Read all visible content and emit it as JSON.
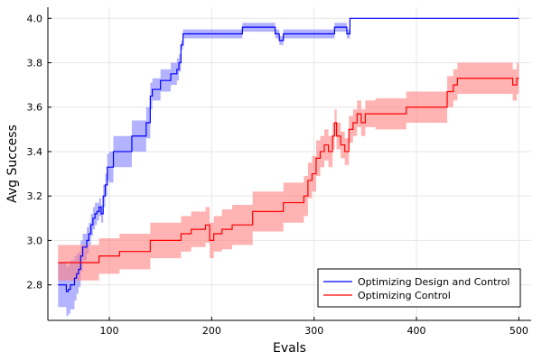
{
  "chart_data": {
    "type": "line",
    "title": "",
    "xlabel": "Evals",
    "ylabel": "Avg Success",
    "xlim": [
      40,
      512
    ],
    "ylim": [
      2.64,
      4.05
    ],
    "x_ticks": [
      100,
      200,
      300,
      400,
      500
    ],
    "y_ticks": [
      2.8,
      3.0,
      3.2,
      3.4,
      3.6,
      3.8,
      4.0
    ],
    "x_tick_labels": [
      "100",
      "200",
      "300",
      "400",
      "500"
    ],
    "y_tick_labels": [
      "2.8",
      "3.0",
      "3.2",
      "3.4",
      "3.6",
      "3.8",
      "4.0"
    ],
    "grid": true,
    "legend_position": "bottom-right",
    "series": [
      {
        "name": "Optimizing Design and Control",
        "color": "#0000ff",
        "band_color": "#8080ff",
        "x": [
          50,
          52,
          58,
          60,
          62,
          66,
          68,
          70,
          72,
          74,
          78,
          80,
          82,
          84,
          86,
          88,
          90,
          92,
          94,
          96,
          98,
          100,
          104,
          110,
          118,
          122,
          126,
          134,
          136,
          140,
          142,
          150,
          158,
          160,
          162,
          166,
          168,
          170,
          172,
          174,
          200,
          210,
          220,
          230,
          250,
          262,
          266,
          270,
          275,
          300,
          320,
          322,
          325,
          330,
          332,
          335,
          400,
          500
        ],
        "y": [
          2.8,
          2.8,
          2.77,
          2.78,
          2.8,
          2.83,
          2.85,
          2.87,
          2.93,
          2.97,
          3.0,
          3.03,
          3.07,
          3.1,
          3.12,
          3.13,
          3.15,
          3.12,
          3.2,
          3.25,
          3.33,
          3.33,
          3.4,
          3.4,
          3.4,
          3.47,
          3.47,
          3.47,
          3.53,
          3.65,
          3.68,
          3.72,
          3.72,
          3.75,
          3.75,
          3.77,
          3.8,
          3.88,
          3.93,
          3.93,
          3.93,
          3.93,
          3.93,
          3.96,
          3.96,
          3.93,
          3.9,
          3.93,
          3.93,
          3.93,
          3.96,
          3.96,
          3.96,
          3.96,
          3.93,
          4.0,
          4.0,
          4.0
        ],
        "band_half_width": [
          0.1,
          0.1,
          0.11,
          0.11,
          0.11,
          0.1,
          0.09,
          0.08,
          0.07,
          0.06,
          0.06,
          0.05,
          0.05,
          0.05,
          0.05,
          0.04,
          0.04,
          0.04,
          0.05,
          0.05,
          0.06,
          0.07,
          0.07,
          0.07,
          0.07,
          0.07,
          0.07,
          0.07,
          0.07,
          0.06,
          0.05,
          0.05,
          0.05,
          0.05,
          0.05,
          0.05,
          0.04,
          0.02,
          0.02,
          0.02,
          0.02,
          0.02,
          0.02,
          0.02,
          0.02,
          0.02,
          0.02,
          0.02,
          0.02,
          0.02,
          0.02,
          0.02,
          0.02,
          0.02,
          0.02,
          0.0,
          0.0,
          0.0
        ]
      },
      {
        "name": "Optimizing Control",
        "color": "#ff0000",
        "band_color": "#ff8080",
        "x": [
          50,
          60,
          70,
          80,
          90,
          100,
          110,
          120,
          130,
          140,
          150,
          160,
          170,
          180,
          190,
          194,
          198,
          202,
          210,
          220,
          230,
          240,
          250,
          260,
          270,
          280,
          290,
          294,
          298,
          302,
          306,
          310,
          314,
          318,
          320,
          322,
          326,
          330,
          334,
          338,
          342,
          346,
          350,
          360,
          370,
          380,
          390,
          400,
          410,
          420,
          430,
          436,
          440,
          450,
          470,
          490,
          494,
          498,
          500
        ],
        "y": [
          2.9,
          2.9,
          2.9,
          2.9,
          2.93,
          2.93,
          2.95,
          2.95,
          2.95,
          3.0,
          3.0,
          3.0,
          3.03,
          3.05,
          3.05,
          3.07,
          3.0,
          3.03,
          3.05,
          3.07,
          3.07,
          3.13,
          3.13,
          3.13,
          3.17,
          3.17,
          3.2,
          3.27,
          3.3,
          3.37,
          3.4,
          3.43,
          3.4,
          3.47,
          3.53,
          3.47,
          3.43,
          3.4,
          3.5,
          3.53,
          3.57,
          3.53,
          3.57,
          3.57,
          3.57,
          3.57,
          3.6,
          3.6,
          3.6,
          3.6,
          3.67,
          3.7,
          3.73,
          3.73,
          3.73,
          3.73,
          3.7,
          3.73,
          3.73
        ],
        "band_half_width": [
          0.08,
          0.08,
          0.08,
          0.08,
          0.08,
          0.08,
          0.08,
          0.08,
          0.08,
          0.08,
          0.08,
          0.08,
          0.08,
          0.08,
          0.08,
          0.08,
          0.08,
          0.08,
          0.09,
          0.09,
          0.09,
          0.09,
          0.09,
          0.09,
          0.09,
          0.09,
          0.09,
          0.08,
          0.08,
          0.08,
          0.07,
          0.07,
          0.07,
          0.06,
          0.06,
          0.06,
          0.06,
          0.06,
          0.06,
          0.06,
          0.06,
          0.06,
          0.06,
          0.07,
          0.07,
          0.07,
          0.07,
          0.07,
          0.07,
          0.07,
          0.07,
          0.07,
          0.07,
          0.07,
          0.07,
          0.07,
          0.07,
          0.07,
          0.07
        ]
      }
    ]
  }
}
